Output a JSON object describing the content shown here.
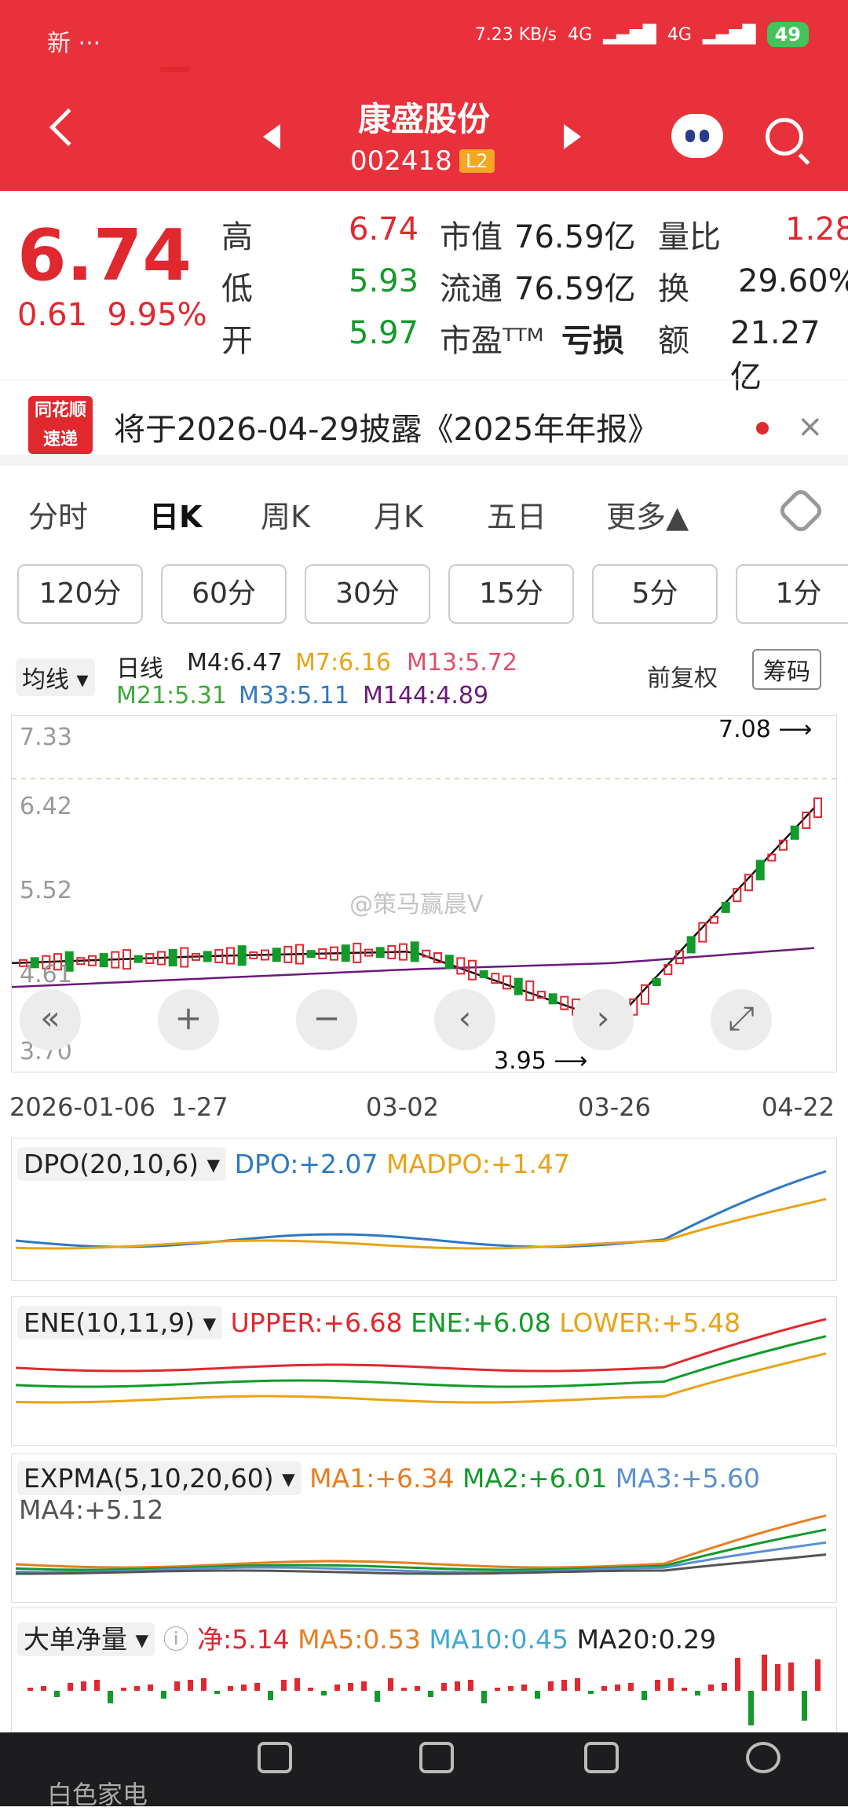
{
  "status": {
    "left_icons": "新 ···",
    "speed": "7.23 KB/s",
    "net1": "4G",
    "net2": "4G",
    "battery": "49"
  },
  "header": {
    "name": "康盛股份",
    "code": "002418",
    "level": "L2"
  },
  "quote": {
    "price": "6.74",
    "change": "0.61",
    "change_pct": "9.95%",
    "rows": [
      {
        "l1": "高",
        "v1": "6.74",
        "l2": "市值",
        "v2": "76.59亿",
        "l3": "量比",
        "v3": "1.28"
      },
      {
        "l1": "低",
        "v1": "5.93",
        "l2": "流通",
        "v2": "76.59亿",
        "l3": "换",
        "v3": "29.60%"
      },
      {
        "l1": "开",
        "v1": "5.97",
        "l2": "市盈ᵀᵀᴹ",
        "v2": "亏损",
        "l3": "额",
        "v3": "21.27亿"
      }
    ]
  },
  "notice": {
    "logo_top": "同花顺",
    "logo_bottom": "速递",
    "text": "将于2026-04-29披露《2025年年报》"
  },
  "tabs": [
    "分时",
    "日K",
    "周K",
    "月K",
    "五日",
    "更多▲"
  ],
  "minute_buttons": [
    "120分",
    "60分",
    "30分",
    "15分",
    "5分",
    "1分"
  ],
  "kline": {
    "ma_select": "均线",
    "line_label": "日线",
    "m4": "M4:6.47",
    "m7": "M7:6.16",
    "m13": "M13:5.72",
    "m21": "M21:5.31",
    "m33": "M33:5.11",
    "m144": "M144:4.89",
    "adjust": "前复权",
    "chip": "筹码",
    "yticks": [
      "7.33",
      "6.42",
      "5.52",
      "4.61",
      "3.70"
    ],
    "high_mark": "7.08",
    "low_mark": "3.95",
    "watermark": "@策马赢晨V",
    "dates": [
      "2026-01-06",
      "1-27",
      "03-02",
      "03-26",
      "04-22"
    ]
  },
  "chart_data": {
    "type": "line",
    "x": [
      "2026-01-06",
      "1-27",
      "03-02",
      "03-26",
      "04-22"
    ],
    "series": [
      {
        "name": "M4",
        "values": [
          4.72,
          4.8,
          4.85,
          4.05,
          6.47
        ]
      },
      {
        "name": "M144",
        "values": [
          4.45,
          4.55,
          4.65,
          4.72,
          4.89
        ]
      }
    ],
    "ylim": [
      3.7,
      7.33
    ]
  },
  "dpo": {
    "sel": "DPO(20,10,6)",
    "dpo": "DPO:+2.07",
    "madpo": "MADPO:+1.47"
  },
  "ene": {
    "sel": "ENE(10,11,9)",
    "upper": "UPPER:+6.68",
    "ene": "ENE:+6.08",
    "lower": "LOWER:+5.48"
  },
  "expma": {
    "sel": "EXPMA(5,10,20,60)",
    "ma1": "MA1:+6.34",
    "ma2": "MA2:+6.01",
    "ma3": "MA3:+5.60",
    "ma4": "MA4:+5.12"
  },
  "bigorder": {
    "sel": "大单净量",
    "jing": "净:5.14",
    "ma5": "MA5:0.53",
    "ma10": "MA10:0.45",
    "ma20": "MA20:0.29"
  },
  "bottom": [
    "白色家电",
    "",
    "",
    "",
    ""
  ],
  "colors": {
    "red": "#e0282f",
    "green": "#139a2a",
    "topbar": "#e9313b"
  }
}
